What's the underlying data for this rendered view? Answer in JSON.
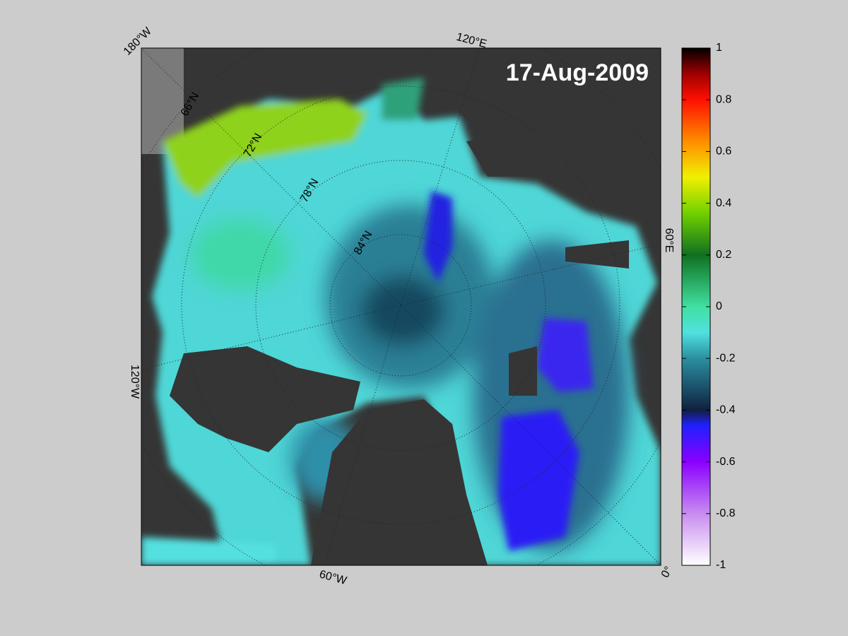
{
  "title": "17-Aug-2009",
  "longitude_labels": [
    "180°W",
    "120°E",
    "60°E",
    "0°",
    "60°W",
    "120°W"
  ],
  "latitude_labels": [
    "66°N",
    "72°N",
    "78°N",
    "84°N"
  ],
  "colorbar": {
    "lim": [
      -1,
      1
    ],
    "ticks": [
      1,
      0.8,
      0.6,
      0.4,
      0.2,
      0,
      -0.2,
      -0.4,
      -0.6,
      -0.8,
      -1
    ]
  }
}
